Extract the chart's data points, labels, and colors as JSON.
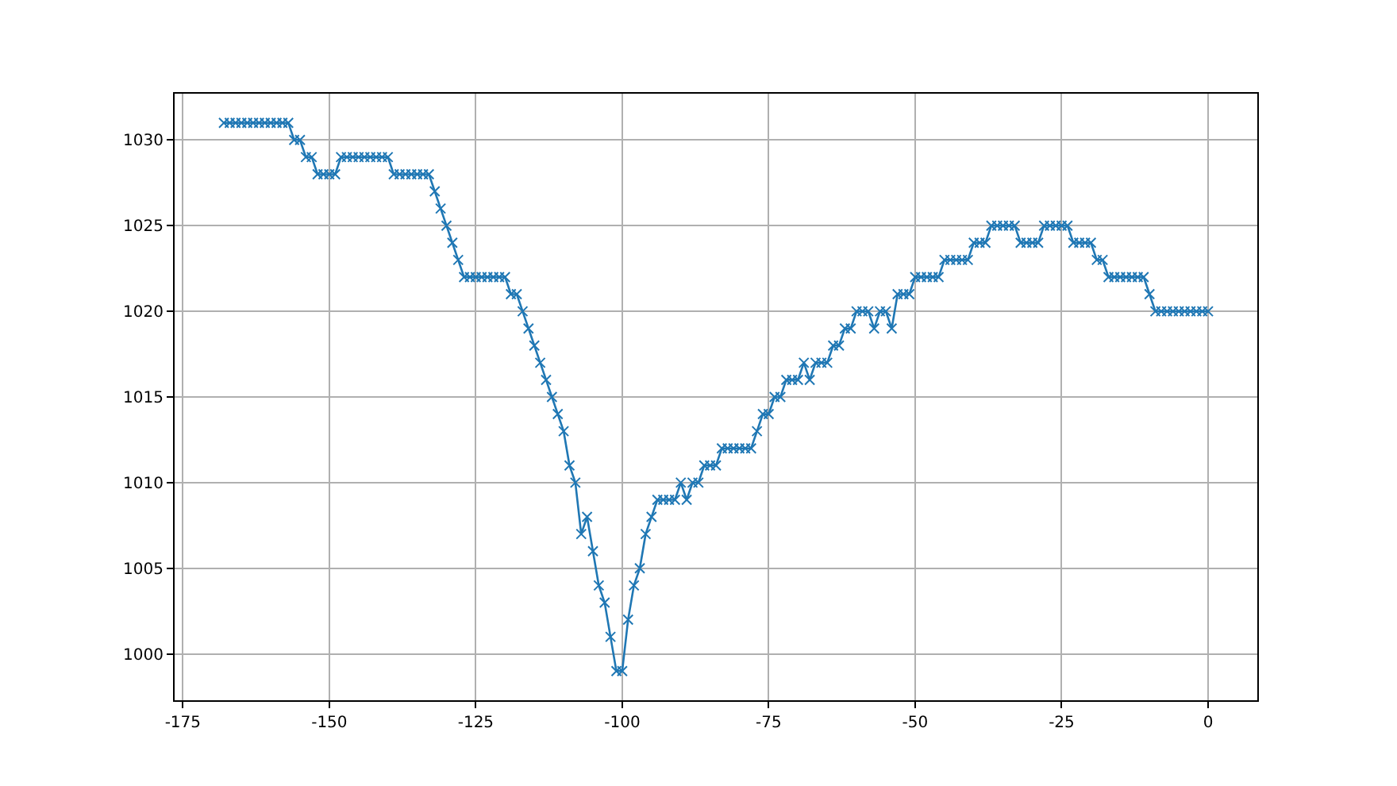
{
  "chart_data": {
    "type": "line",
    "marker": "cross",
    "line_style": "solid",
    "grid": true,
    "xlim": [
      -176.4,
      8.4
    ],
    "ylim": [
      997.3,
      1032.7
    ],
    "xticks": [
      -175,
      -150,
      -125,
      -100,
      -75,
      -50,
      -25,
      0
    ],
    "yticks": [
      1000,
      1005,
      1010,
      1015,
      1020,
      1025,
      1030
    ],
    "x": [
      -168,
      -167,
      -166,
      -165,
      -164,
      -163,
      -162,
      -161,
      -160,
      -159,
      -158,
      -157,
      -156,
      -155,
      -154,
      -153,
      -152,
      -151,
      -150,
      -149,
      -148,
      -147,
      -146,
      -145,
      -144,
      -143,
      -142,
      -141,
      -140,
      -139,
      -138,
      -137,
      -136,
      -135,
      -134,
      -133,
      -132,
      -131,
      -130,
      -129,
      -128,
      -127,
      -126,
      -125,
      -124,
      -123,
      -122,
      -121,
      -120,
      -119,
      -118,
      -117,
      -116,
      -115,
      -114,
      -113,
      -112,
      -111,
      -110,
      -109,
      -108,
      -107,
      -106,
      -105,
      -104,
      -103,
      -102,
      -101,
      -100,
      -99,
      -98,
      -97,
      -96,
      -95,
      -94,
      -93,
      -92,
      -91,
      -90,
      -89,
      -88,
      -87,
      -86,
      -85,
      -84,
      -83,
      -82,
      -81,
      -80,
      -79,
      -78,
      -77,
      -76,
      -75,
      -74,
      -73,
      -72,
      -71,
      -70,
      -69,
      -68,
      -67,
      -66,
      -65,
      -64,
      -63,
      -62,
      -61,
      -60,
      -59,
      -58,
      -57,
      -56,
      -55,
      -54,
      -53,
      -52,
      -51,
      -50,
      -49,
      -48,
      -47,
      -46,
      -45,
      -44,
      -43,
      -42,
      -41,
      -40,
      -39,
      -38,
      -37,
      -36,
      -35,
      -34,
      -33,
      -32,
      -31,
      -30,
      -29,
      -28,
      -27,
      -26,
      -25,
      -24,
      -23,
      -22,
      -21,
      -20,
      -19,
      -18,
      -17,
      -16,
      -15,
      -14,
      -13,
      -12,
      -11,
      -10,
      -9,
      -8,
      -7,
      -6,
      -5,
      -4,
      -3,
      -2,
      -1,
      0
    ],
    "series": [
      {
        "color": "#1f77b4",
        "values": [
          1031,
          1031,
          1031,
          1031,
          1031,
          1031,
          1031,
          1031,
          1031,
          1031,
          1031,
          1031,
          1030,
          1030,
          1029,
          1029,
          1028,
          1028,
          1028,
          1028,
          1029,
          1029,
          1029,
          1029,
          1029,
          1029,
          1029,
          1029,
          1029,
          1028,
          1028,
          1028,
          1028,
          1028,
          1028,
          1028,
          1027,
          1026,
          1025,
          1024,
          1023,
          1022,
          1022,
          1022,
          1022,
          1022,
          1022,
          1022,
          1022,
          1021,
          1021,
          1020,
          1019,
          1018,
          1017,
          1016,
          1015,
          1014,
          1013,
          1011,
          1010,
          1007,
          1008,
          1006,
          1004,
          1003,
          1001,
          999,
          999,
          1002,
          1004,
          1005,
          1007,
          1008,
          1009,
          1009,
          1009,
          1009,
          1010,
          1009,
          1010,
          1010,
          1011,
          1011,
          1011,
          1012,
          1012,
          1012,
          1012,
          1012,
          1012,
          1013,
          1014,
          1014,
          1015,
          1015,
          1016,
          1016,
          1016,
          1017,
          1016,
          1017,
          1017,
          1017,
          1018,
          1018,
          1019,
          1019,
          1020,
          1020,
          1020,
          1019,
          1020,
          1020,
          1019,
          1021,
          1021,
          1021,
          1022,
          1022,
          1022,
          1022,
          1022,
          1023,
          1023,
          1023,
          1023,
          1023,
          1024,
          1024,
          1024,
          1025,
          1025,
          1025,
          1025,
          1025,
          1024,
          1024,
          1024,
          1024,
          1025,
          1025,
          1025,
          1025,
          1025,
          1024,
          1024,
          1024,
          1024,
          1023,
          1023,
          1022,
          1022,
          1022,
          1022,
          1022,
          1022,
          1022,
          1021,
          1020,
          1020,
          1020,
          1020,
          1020,
          1020,
          1020,
          1020,
          1020,
          1020
        ]
      }
    ]
  }
}
